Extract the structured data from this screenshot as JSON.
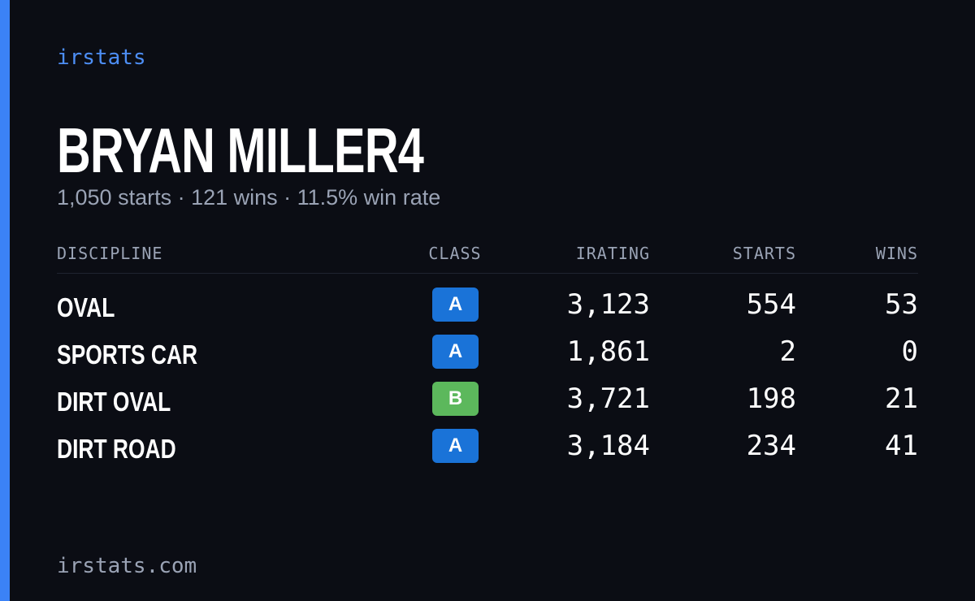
{
  "brand": "irstats",
  "driver": {
    "name": "BRYAN MILLER4",
    "summary": "1,050 starts · 121 wins · 11.5% win rate"
  },
  "table": {
    "headers": [
      "DISCIPLINE",
      "CLASS",
      "IRATING",
      "STARTS",
      "WINS"
    ],
    "rows": [
      [
        "OVAL",
        "A",
        "3,123",
        "554",
        "53"
      ],
      [
        "SPORTS CAR",
        "A",
        "1,861",
        "2",
        "0"
      ],
      [
        "DIRT OVAL",
        "B",
        "3,721",
        "198",
        "21"
      ],
      [
        "DIRT ROAD",
        "A",
        "3,184",
        "234",
        "41"
      ]
    ],
    "class_colors": {
      "A": "#1a73d8",
      "B": "#5cb85c"
    }
  },
  "footer": "irstats.com"
}
